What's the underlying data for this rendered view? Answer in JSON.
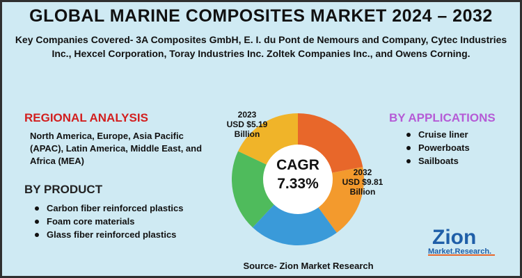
{
  "title": "GLOBAL MARINE COMPOSITES MARKET 2024 – 2032",
  "subtitle": "Key Companies Covered- 3A Composites GmbH, E. I. du Pont de Nemours and Company, Cytec Industries Inc., Hexcel Corporation, Toray Industries Inc. Zoltek Companies Inc., and Owens Corning.",
  "regional": {
    "heading": "REGIONAL ANALYSIS",
    "text": "North America, Europe, Asia Pacific (APAC), Latin America, Middle East, and Africa (MEA)"
  },
  "product": {
    "heading": "BY PRODUCT",
    "items": [
      "Carbon fiber reinforced plastics",
      "Foam core materials",
      "Glass fiber reinforced plastics"
    ]
  },
  "applications": {
    "heading": "BY APPLICATIONS",
    "items": [
      "Cruise liner",
      "Powerboats",
      "Sailboats"
    ]
  },
  "chart_data": {
    "type": "pie",
    "donut": true,
    "center_label": [
      "CAGR",
      "7.33%"
    ],
    "annotations": [
      {
        "year": "2023",
        "label": "USD $5.19",
        "unit": "Billion"
      },
      {
        "year": "2032",
        "label": "USD $9.81",
        "unit": "Billion"
      }
    ],
    "values": [
      22,
      18,
      22,
      20,
      18
    ],
    "colors": [
      "#e8672a",
      "#f39a2d",
      "#3a9ad9",
      "#4fbb5c",
      "#f0b429"
    ]
  },
  "source": "Source- Zion Market Research",
  "logo": {
    "main": "Zion",
    "sub": "Market.Research."
  }
}
